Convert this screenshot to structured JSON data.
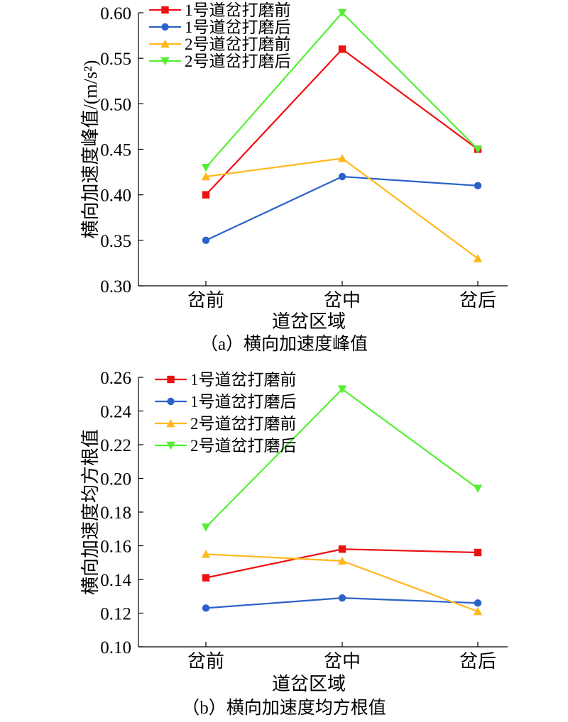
{
  "chart_data": [
    {
      "type": "line",
      "caption": "（a）横向加速度峰值",
      "xlabel": "道岔区域",
      "ylabel": "横向加速度峰值/(m/s²)",
      "categories": [
        "岔前",
        "岔中",
        "岔后"
      ],
      "ylim": [
        0.3,
        0.6
      ],
      "yticks": [
        "0.30",
        "0.35",
        "0.40",
        "0.45",
        "0.50",
        "0.55",
        "0.60"
      ],
      "grid": false,
      "legend_position": "top-left",
      "series": [
        {
          "name": "1号道岔打磨前",
          "color": "#ee1111",
          "marker": "square",
          "values": [
            0.4,
            0.56,
            0.45
          ]
        },
        {
          "name": "1号道岔打磨后",
          "color": "#2a62c9",
          "marker": "circle",
          "values": [
            0.35,
            0.42,
            0.41
          ]
        },
        {
          "name": "2号道岔打磨前",
          "color": "#ffb81c",
          "marker": "triangle-up",
          "values": [
            0.42,
            0.44,
            0.33
          ]
        },
        {
          "name": "2号道岔打磨后",
          "color": "#55ee33",
          "marker": "triangle-down",
          "values": [
            0.43,
            0.6,
            0.45
          ]
        }
      ]
    },
    {
      "type": "line",
      "caption": "（b）横向加速度均方根值",
      "xlabel": "道岔区域",
      "ylabel": "横向加速度均方根值",
      "categories": [
        "岔前",
        "岔中",
        "岔后"
      ],
      "ylim": [
        0.1,
        0.26
      ],
      "yticks": [
        "0.10",
        "0.12",
        "0.14",
        "0.16",
        "0.18",
        "0.20",
        "0.22",
        "0.24",
        "0.26"
      ],
      "grid": false,
      "legend_position": "top-left",
      "series": [
        {
          "name": "1号道岔打磨前",
          "color": "#ee1111",
          "marker": "square",
          "values": [
            0.141,
            0.158,
            0.156
          ]
        },
        {
          "name": "1号道岔打磨后",
          "color": "#2a62c9",
          "marker": "circle",
          "values": [
            0.123,
            0.129,
            0.126
          ]
        },
        {
          "name": "2号道岔打磨前",
          "color": "#ffb81c",
          "marker": "triangle-up",
          "values": [
            0.155,
            0.151,
            0.121
          ]
        },
        {
          "name": "2号道岔打磨后",
          "color": "#55ee33",
          "marker": "triangle-down",
          "values": [
            0.171,
            0.253,
            0.194
          ]
        }
      ]
    }
  ]
}
